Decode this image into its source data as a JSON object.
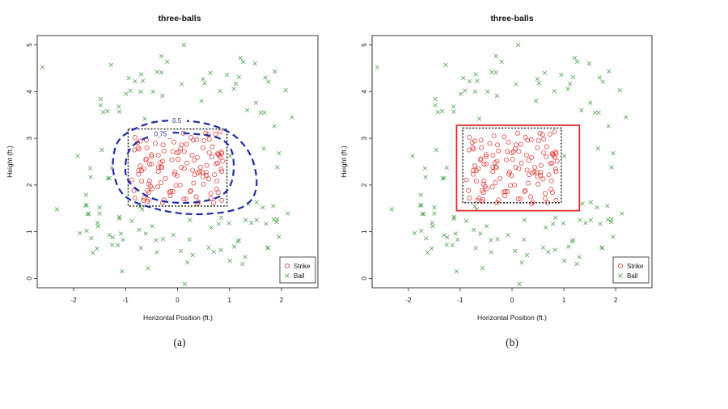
{
  "chart_data": [
    {
      "type": "scatter",
      "panel": "a",
      "caption": "(a)",
      "title": "three-balls",
      "xlabel": "Horizontal Position (ft.)",
      "ylabel": "Height (ft.)",
      "xlim": [
        -2.7,
        2.7
      ],
      "ylim": [
        -0.2,
        5.2
      ],
      "xticks": [
        -2,
        -1,
        0,
        1,
        2
      ],
      "yticks": [
        0,
        1,
        2,
        3,
        4,
        5
      ],
      "legend": [
        {
          "name": "Strike",
          "color": "#e0302c",
          "marker": "o"
        },
        {
          "name": "Ball",
          "color": "#3c9a3c",
          "marker": "x"
        }
      ],
      "legend_position": "bottom-right",
      "rulebook_zone": {
        "x": [
          -0.95,
          0.95
        ],
        "y": [
          1.55,
          3.2
        ],
        "style": "dotted",
        "color": "#111111"
      },
      "contours": [
        {
          "label": "0.5",
          "color": "#1c2aa8",
          "points": [
            [
              -1.05,
              3.05
            ],
            [
              -0.55,
              3.32
            ],
            [
              0.0,
              3.38
            ],
            [
              0.6,
              3.3
            ],
            [
              1.1,
              3.05
            ],
            [
              1.42,
              2.6
            ],
            [
              1.52,
              2.0
            ],
            [
              1.35,
              1.6
            ],
            [
              0.9,
              1.42
            ],
            [
              0.2,
              1.38
            ],
            [
              -0.45,
              1.5
            ],
            [
              -1.0,
              1.75
            ],
            [
              -1.22,
              2.2
            ],
            [
              -1.22,
              2.7
            ]
          ]
        },
        {
          "label": "0.75",
          "color": "#1c2aa8",
          "points": [
            [
              -0.85,
              2.85
            ],
            [
              -0.35,
              3.1
            ],
            [
              0.25,
              3.1
            ],
            [
              0.8,
              3.0
            ],
            [
              1.05,
              2.7
            ],
            [
              1.05,
              2.1
            ],
            [
              0.8,
              1.75
            ],
            [
              0.2,
              1.62
            ],
            [
              -0.45,
              1.7
            ],
            [
              -0.92,
              2.05
            ],
            [
              -1.0,
              2.45
            ]
          ]
        }
      ],
      "strikes": [
        [
          -0.65,
          2.35
        ],
        [
          -0.35,
          3.05
        ],
        [
          0.84,
          2.71
        ],
        [
          0.36,
          1.75
        ],
        [
          -0.6,
          2.96
        ],
        [
          -0.37,
          2.29
        ],
        [
          0.73,
          3.09
        ],
        [
          0.26,
          1.88
        ],
        [
          -0.61,
          2.54
        ],
        [
          0.75,
          1.91
        ],
        [
          0.29,
          2.32
        ],
        [
          0.28,
          2.64
        ],
        [
          0.84,
          2.34
        ],
        [
          -0.55,
          2.02
        ],
        [
          0.67,
          2.82
        ],
        [
          -0.5,
          2.65
        ],
        [
          0.08,
          2.86
        ],
        [
          0.69,
          1.62
        ],
        [
          0.31,
          2.04
        ],
        [
          0.77,
          2.67
        ],
        [
          -0.58,
          1.88
        ],
        [
          0.59,
          3.08
        ],
        [
          -0.06,
          2.23
        ],
        [
          0.61,
          2.69
        ],
        [
          0.24,
          1.86
        ],
        [
          -0.28,
          2.86
        ],
        [
          0.56,
          2.42
        ],
        [
          0.32,
          2.53
        ],
        [
          -0.26,
          1.68
        ],
        [
          -0.72,
          2.94
        ],
        [
          -0.54,
          2.09
        ],
        [
          -0.01,
          2.2
        ],
        [
          0.38,
          1.6
        ],
        [
          -0.5,
          2.45
        ],
        [
          0.85,
          2.29
        ],
        [
          -0.82,
          3.02
        ],
        [
          0.07,
          2.38
        ],
        [
          0.64,
          1.82
        ],
        [
          -0.56,
          1.69
        ],
        [
          -0.09,
          1.86
        ],
        [
          0.55,
          2.21
        ],
        [
          -0.32,
          2.05
        ],
        [
          0.83,
          2.59
        ],
        [
          -0.3,
          2.38
        ],
        [
          -0.38,
          1.96
        ],
        [
          0.01,
          2.55
        ],
        [
          0.16,
          1.7
        ],
        [
          -0.15,
          3.03
        ],
        [
          0.18,
          2.47
        ],
        [
          -0.75,
          2.31
        ],
        [
          -0.66,
          1.67
        ],
        [
          0.13,
          2.35
        ],
        [
          -0.83,
          2.75
        ],
        [
          -0.29,
          1.62
        ],
        [
          0.87,
          2.51
        ],
        [
          -0.6,
          2.56
        ],
        [
          0.03,
          2.71
        ],
        [
          -0.23,
          2.14
        ],
        [
          0.8,
          2.63
        ],
        [
          0.33,
          2.22
        ],
        [
          -0.69,
          2.08
        ],
        [
          0.82,
          3.14
        ],
        [
          -0.5,
          2.61
        ],
        [
          0.38,
          2.59
        ],
        [
          0.51,
          2.95
        ],
        [
          -0.84,
          1.88
        ],
        [
          0.05,
          2.0
        ],
        [
          0.44,
          2.38
        ],
        [
          0.6,
          2.13
        ],
        [
          -0.77,
          2.91
        ],
        [
          0.49,
          2.18
        ],
        [
          -0.64,
          1.72
        ],
        [
          -0.82,
          1.72
        ],
        [
          -0.03,
          1.99
        ],
        [
          0.85,
          1.67
        ],
        [
          -0.26,
          2.73
        ],
        [
          -0.07,
          2.92
        ],
        [
          -0.54,
          2.45
        ],
        [
          -0.74,
          2.77
        ],
        [
          -0.37,
          2.38
        ],
        [
          0.17,
          2.87
        ],
        [
          -0.05,
          2.28
        ],
        [
          0.11,
          3.11
        ],
        [
          -0.09,
          2.72
        ],
        [
          -0.69,
          2.31
        ],
        [
          0.64,
          1.71
        ],
        [
          0.49,
          2.8
        ],
        [
          -0.11,
          2.54
        ],
        [
          -0.55,
          1.84
        ],
        [
          0.12,
          1.7
        ],
        [
          -0.76,
          2.8
        ],
        [
          -0.52,
          1.97
        ],
        [
          0.66,
          2.6
        ],
        [
          -0.13,
          1.86
        ],
        [
          0.5,
          2.02
        ],
        [
          0.13,
          2.72
        ],
        [
          0.37,
          2.97
        ],
        [
          0.85,
          2.68
        ],
        [
          0.3,
          2.96
        ],
        [
          0.76,
          2.09
        ],
        [
          0.26,
          3.02
        ],
        [
          -0.33,
          2.48
        ],
        [
          0.48,
          2.27
        ],
        [
          -0.49,
          1.92
        ],
        [
          0.77,
          2.47
        ],
        [
          -0.58,
          1.65
        ],
        [
          -0.01,
          2.69
        ],
        [
          -0.14,
          1.77
        ],
        [
          -0.32,
          2.38
        ],
        [
          0.78,
          1.84
        ],
        [
          0.06,
          2.78
        ],
        [
          0.39,
          2.26
        ],
        [
          -0.16,
          1.85
        ],
        [
          0.74,
          2.46
        ],
        [
          -0.29,
          2.51
        ],
        [
          0.55,
          2.27
        ],
        [
          0.61,
          2.98
        ],
        [
          -0.59,
          2.8
        ],
        [
          0.71,
          2.22
        ],
        [
          0.79,
          2.66
        ],
        [
          -0.72,
          2.41
        ],
        [
          -0.43,
          2.89
        ],
        [
          -0.37,
          2.64
        ],
        [
          0.54,
          3.11
        ],
        [
          -0.88,
          2.11
        ],
        [
          0.4,
          1.64
        ],
        [
          -0.75,
          2.23
        ],
        [
          0.43,
          2.28
        ]
      ],
      "balls": [
        [
          0.82,
          4.01
        ],
        [
          -0.63,
          3.42
        ],
        [
          -1.75,
          1.57
        ],
        [
          -1.31,
          2.15
        ],
        [
          0.52,
          4.18
        ],
        [
          1.75,
          4.21
        ],
        [
          -1.66,
          0.86
        ],
        [
          1.01,
          2.62
        ],
        [
          -0.29,
          3.91
        ],
        [
          -1.15,
          0.71
        ],
        [
          -1.26,
          2.37
        ],
        [
          -1.71,
          1.38
        ],
        [
          -0.71,
          4.0
        ],
        [
          1.42,
          1.19
        ],
        [
          0.6,
          0.66
        ],
        [
          1.36,
          1.6
        ],
        [
          1.34,
          3.6
        ],
        [
          0.65,
          1.09
        ],
        [
          -1.76,
          1.79
        ],
        [
          -0.91,
          4.02
        ],
        [
          -1.12,
          1.28
        ],
        [
          -0.08,
          0.93
        ],
        [
          -1.88,
          0.97
        ],
        [
          1.87,
          4.43
        ],
        [
          1.67,
          3.55
        ],
        [
          -1.75,
          1.02
        ],
        [
          -1.53,
          1.12
        ],
        [
          -1.43,
          3.56
        ],
        [
          -0.7,
          4.37
        ],
        [
          -1.63,
          0.55
        ],
        [
          -1.5,
          1.39
        ],
        [
          -0.82,
          4.22
        ],
        [
          -1.68,
          2.36
        ],
        [
          -0.7,
          0.65
        ],
        [
          -0.41,
          0.82
        ],
        [
          0.23,
          0.83
        ],
        [
          0.49,
          4.27
        ],
        [
          1.09,
          0.68
        ],
        [
          -0.72,
          1.54
        ],
        [
          0.7,
          0.57
        ],
        [
          1.69,
          4.3
        ],
        [
          -0.68,
          1.48
        ],
        [
          -0.28,
          0.84
        ],
        [
          -1.34,
          2.14
        ],
        [
          0.95,
          4.36
        ],
        [
          -0.94,
          4.29
        ],
        [
          -1.5,
          1.52
        ],
        [
          -0.99,
          3.95
        ],
        [
          1.64,
          1.52
        ],
        [
          1.16,
          0.79
        ],
        [
          1.73,
          0.65
        ],
        [
          -1.05,
          0.83
        ],
        [
          -1.73,
          1.38
        ],
        [
          -0.67,
          4.23
        ],
        [
          1.92,
          1.27
        ],
        [
          -1.54,
          1.19
        ],
        [
          1.12,
          4.17
        ],
        [
          1.91,
          1.21
        ],
        [
          -0.31,
          4.41
        ],
        [
          -0.4,
          0.56
        ],
        [
          0.06,
          0.59
        ],
        [
          -1.48,
          3.84
        ],
        [
          1.18,
          0.82
        ],
        [
          1.52,
          1.25
        ],
        [
          -1.77,
          1.56
        ],
        [
          0.79,
          1.17
        ],
        [
          1.85,
          1.26
        ],
        [
          1.31,
          1.25
        ],
        [
          0.99,
          1.18
        ],
        [
          -1.13,
          3.68
        ],
        [
          1.51,
          3.76
        ],
        [
          -1.67,
          2.17
        ],
        [
          1.18,
          4.31
        ],
        [
          0.29,
          0.5
        ],
        [
          0.63,
          4.4
        ],
        [
          -0.61,
          0.96
        ],
        [
          -1.12,
          1.32
        ],
        [
          0.84,
          1.3
        ],
        [
          -1.12,
          3.57
        ],
        [
          1.6,
          3.55
        ],
        [
          -0.47,
          4.0
        ],
        [
          1.26,
          4.64
        ],
        [
          1.7,
          1.17
        ],
        [
          -0.39,
          4.42
        ],
        [
          1.66,
          2.78
        ],
        [
          -1.25,
          0.88
        ],
        [
          1.52,
          1.63
        ],
        [
          0.24,
          1.25
        ],
        [
          -1.46,
          2.75
        ],
        [
          -1.26,
          0.72
        ],
        [
          0.08,
          4.16
        ],
        [
          1.95,
          0.89
        ],
        [
          1.21,
          4.72
        ],
        [
          1.74,
          0.66
        ],
        [
          -0.88,
          1.23
        ],
        [
          -0.49,
          1.12
        ],
        [
          1.08,
          4.06
        ],
        [
          -0.74,
          1.04
        ],
        [
          -1.31,
          0.93
        ],
        [
          -1.35,
          3.58
        ],
        [
          1.84,
          1.55
        ],
        [
          -0.2,
          4.64
        ],
        [
          -2.32,
          1.48
        ],
        [
          2.12,
          1.39
        ],
        [
          0.83,
          0.61
        ],
        [
          -1.07,
          0.15
        ],
        [
          -1.55,
          0.64
        ],
        [
          1.25,
          0.31
        ],
        [
          0.14,
          -0.12
        ],
        [
          -2.6,
          4.52
        ],
        [
          1.95,
          2.68
        ],
        [
          2.2,
          3.45
        ],
        [
          0.12,
          5.0
        ],
        [
          -1.09,
          0.96
        ],
        [
          1.49,
          4.6
        ],
        [
          -1.28,
          4.57
        ],
        [
          -1.92,
          2.62
        ],
        [
          1.01,
          0.38
        ],
        [
          2.08,
          4.03
        ],
        [
          1.3,
          0.46
        ],
        [
          0.19,
          0.34
        ],
        [
          -0.31,
          4.76
        ],
        [
          1.86,
          3.26
        ],
        [
          0.46,
          3.8
        ],
        [
          -0.57,
          0.22
        ],
        [
          1.92,
          2.38
        ],
        [
          -1.48,
          3.71
        ]
      ]
    },
    {
      "type": "scatter",
      "panel": "b",
      "caption": "(b)",
      "title": "three-balls",
      "xlabel": "Horizontal Position (ft.)",
      "ylabel": "Height (ft.)",
      "xlim": [
        -2.7,
        2.7
      ],
      "ylim": [
        -0.2,
        5.2
      ],
      "xticks": [
        -2,
        -1,
        0,
        1,
        2
      ],
      "yticks": [
        0,
        1,
        2,
        3,
        4,
        5
      ],
      "legend": [
        {
          "name": "Strike",
          "color": "#e0302c",
          "marker": "o"
        },
        {
          "name": "Ball",
          "color": "#3c9a3c",
          "marker": "x"
        }
      ],
      "legend_position": "bottom-right",
      "rulebook_zone": {
        "x": [
          -0.95,
          0.95
        ],
        "y": [
          1.62,
          3.22
        ],
        "style": "dotted",
        "color": "#111111"
      },
      "fitted_zone": {
        "x": [
          -1.07,
          1.3
        ],
        "y": [
          1.45,
          3.28
        ],
        "style": "solid",
        "color": "#e0302c"
      },
      "strikes": "same as panel a",
      "balls": "same as panel a"
    }
  ]
}
